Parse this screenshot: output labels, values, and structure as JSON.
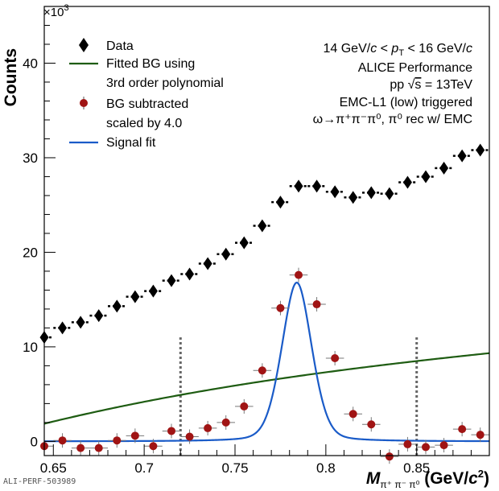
{
  "figure_id": "ALI-PERF-503989",
  "chart_data": {
    "type": "scatter",
    "ylabel": "Counts",
    "y_multiplier": "×10",
    "y_multiplier_exp": "3",
    "xlabel": {
      "main": "M",
      "subscript": "π⁺ π⁻ π⁰",
      "unit_open": " (GeV/",
      "unit_c": "c",
      "unit_exp": "2",
      "unit_close": ")"
    },
    "xlim": [
      0.645,
      0.89
    ],
    "ylim": [
      -1.5,
      46
    ],
    "x_ticks": [
      0.65,
      0.7,
      0.75,
      0.8,
      0.85
    ],
    "x_tick_labels": [
      "0.65",
      "0.7",
      "0.75",
      "0.8",
      "0.85"
    ],
    "y_ticks": [
      0,
      10,
      20,
      30,
      40
    ],
    "y_tick_labels": [
      "0",
      "10",
      "20",
      "30",
      "40"
    ],
    "bin_width": 0.01,
    "bg_polynomial": [
      -93.25,
      289.7,
      -285,
      100
    ],
    "info_lines": [
      "14 GeV/c < pₜ < 16 GeV/c",
      "ALICE Performance",
      "pp  √s = 13TeV",
      "EMC-L1 (low) triggered",
      "ω→π⁺π⁻π⁰, π⁰ rec w/ EMC"
    ],
    "info_line0": {
      "a": "14 GeV/",
      "b": "c",
      "c": " < ",
      "d": "p",
      "e": "T",
      "f": " < 16 GeV/",
      "g": "c"
    },
    "info_line2": {
      "a": "pp  ",
      "b": "√",
      "c": "s",
      "d": " = 13TeV"
    },
    "legend": {
      "data": "Data",
      "bg_fit_line1": "Fitted BG using",
      "bg_fit_line2": "3rd order polynomial",
      "bgsub_line1": "BG subtracted",
      "bgsub_line2": "scaled by 4.0",
      "signal_fit": "Signal fit"
    },
    "window_lines_x": [
      0.72,
      0.85
    ],
    "signal_fit": {
      "mean": 0.784,
      "sigma": 0.0085,
      "gamma": 0.0085,
      "amplitude": 16.8,
      "width": 0.011
    },
    "series": [
      {
        "name": "Data",
        "marker": "diamond",
        "color": "#000000",
        "x": [
          0.645,
          0.655,
          0.665,
          0.675,
          0.685,
          0.695,
          0.705,
          0.715,
          0.725,
          0.735,
          0.745,
          0.755,
          0.765,
          0.775,
          0.785,
          0.795,
          0.805,
          0.815,
          0.825,
          0.835,
          0.845,
          0.855,
          0.865,
          0.875,
          0.885
        ],
        "y": [
          11.0,
          12.0,
          12.6,
          13.3,
          14.3,
          15.3,
          15.9,
          17.0,
          17.7,
          18.8,
          19.8,
          21.0,
          22.8,
          25.3,
          27.0,
          27.0,
          26.4,
          25.8,
          26.3,
          26.2,
          27.4,
          28.0,
          28.9,
          30.2,
          30.8
        ]
      },
      {
        "name": "BG subtracted scaled by 4.0",
        "marker": "circle",
        "color": "#a01414",
        "x": [
          0.645,
          0.655,
          0.665,
          0.675,
          0.685,
          0.695,
          0.705,
          0.715,
          0.725,
          0.735,
          0.745,
          0.755,
          0.765,
          0.775,
          0.785,
          0.795,
          0.805,
          0.815,
          0.825,
          0.835,
          0.845,
          0.855,
          0.865,
          0.875,
          0.885
        ],
        "y": [
          -0.5,
          0.1,
          -0.7,
          -0.7,
          0.1,
          0.6,
          -0.5,
          1.1,
          0.5,
          1.4,
          2.0,
          3.7,
          7.5,
          14.1,
          17.6,
          14.5,
          8.8,
          2.9,
          1.8,
          -1.6,
          -0.3,
          -0.6,
          -0.4,
          1.3,
          0.7
        ]
      }
    ]
  }
}
